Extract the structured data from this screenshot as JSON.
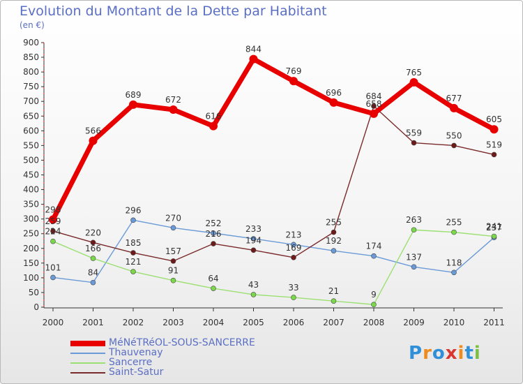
{
  "title": "Evolution du Montant de la Dette par Habitant",
  "unit": "(en €)",
  "logo": {
    "text": "Proxiti",
    "colors": [
      "#2f8fd8",
      "#f08a1c",
      "#2f8fd8",
      "#d8362f",
      "#f08a1c",
      "#2f8fd8",
      "#7bc043"
    ]
  },
  "chart_data": {
    "type": "line",
    "title": "Evolution du Montant de la Dette par Habitant",
    "ylabel": "(en €)",
    "xlabel": "",
    "x": [
      "2000",
      "2001",
      "2002",
      "2003",
      "2004",
      "2005",
      "2006",
      "2007",
      "2008",
      "2009",
      "2010",
      "2011"
    ],
    "yticks": [
      "0",
      "50",
      "100",
      "150",
      "200",
      "250",
      "300",
      "350",
      "400",
      "450",
      "500",
      "550",
      "600",
      "650",
      "700",
      "750",
      "800",
      "850",
      "900"
    ],
    "ylim": [
      0,
      900
    ],
    "grid": "none",
    "legend_position": "bottom-left",
    "series": [
      {
        "name": "MéNéTRéOL-SOUS-SANCERRE",
        "color": "#e80000",
        "values": [
          298,
          566,
          689,
          672,
          616,
          844,
          769,
          696,
          658,
          765,
          677,
          605
        ],
        "labels": [
          "298",
          "566",
          "689",
          "672",
          "616",
          "844",
          "769",
          "696",
          "658",
          "765",
          "677",
          "605"
        ]
      },
      {
        "name": "Thauvenay",
        "color": "#6a9ad8",
        "values": [
          101,
          84,
          296,
          270,
          252,
          233,
          213,
          192,
          174,
          137,
          118,
          237
        ],
        "labels": [
          "101",
          "84",
          "296",
          "270",
          "252",
          "233",
          "213",
          "192",
          "174",
          "137",
          "118",
          "237"
        ]
      },
      {
        "name": "Sancerre",
        "color": "#9be072",
        "values": [
          224,
          166,
          121,
          91,
          64,
          43,
          33,
          21,
          9,
          263,
          255,
          241
        ],
        "labels": [
          "224",
          "166",
          "121",
          "91",
          "64",
          "43",
          "33",
          "21",
          "9",
          "263",
          "255",
          "241"
        ]
      },
      {
        "name": "Saint-Satur",
        "color": "#7a2a2a",
        "values": [
          259,
          220,
          185,
          157,
          216,
          194,
          169,
          255,
          684,
          559,
          550,
          519
        ],
        "labels": [
          "259",
          "220",
          "185",
          "157",
          "216",
          "194",
          "169",
          "255",
          "684",
          "559",
          "550",
          "519"
        ]
      }
    ]
  }
}
